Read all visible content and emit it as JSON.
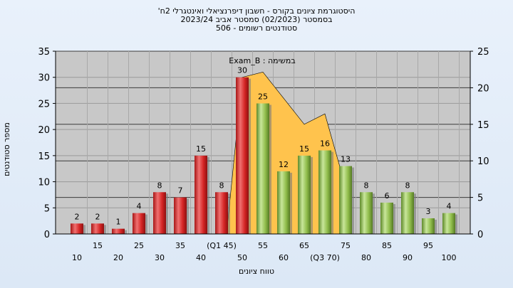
{
  "chart_data": {
    "type": "bar",
    "title_lines": [
      "'היסטוגרמת ציונים בקורס - חשבון דיפרנציאלי ואינטגרלי 2ח",
      "בסמסטר  (02/2023)  סמסטר אביב 2023/24",
      "סטודנטים רשומים - 506"
    ],
    "legend_text": "Exam_B : במשימה",
    "xlabel": "טווח ציונים",
    "ylabel": "מספר סטודנטים",
    "ylim": [
      0,
      35
    ],
    "yticks": [
      0,
      5,
      10,
      15,
      20,
      25,
      30,
      35
    ],
    "y2lim": [
      0,
      25
    ],
    "y2ticks": [
      0,
      5,
      10,
      15,
      20,
      25
    ],
    "categories": [
      "10",
      "15",
      "20",
      "25",
      "30",
      "35",
      "40",
      "(Q1 45)",
      "50",
      "55",
      "60",
      "65",
      "(Q3 70)",
      "75",
      "80",
      "85",
      "90",
      "95",
      "100"
    ],
    "values": [
      2,
      2,
      1,
      4,
      8,
      7,
      15,
      8,
      30,
      25,
      12,
      15,
      16,
      13,
      8,
      6,
      8,
      3,
      4
    ],
    "value_labels": [
      "2",
      "2",
      "1",
      "4",
      "8",
      "7",
      "15",
      "8",
      "30",
      "25",
      "12",
      "15",
      "16",
      "13",
      "8",
      "6",
      "8",
      "3",
      "4"
    ],
    "bar_colors": [
      "red",
      "red",
      "red",
      "red",
      "red",
      "red",
      "red",
      "red",
      "red",
      "green",
      "green",
      "green",
      "green",
      "green",
      "green",
      "green",
      "green",
      "green",
      "green"
    ],
    "area_series": {
      "x_start_index": 8,
      "values": [
        30,
        31,
        26,
        21,
        23,
        9
      ]
    },
    "grid": true,
    "colors": {
      "red_bar": "#dc2f2f",
      "green_bar": "#8fbc4a",
      "area": "#ffc34d",
      "plot_bg": "#c8c8c8"
    }
  }
}
